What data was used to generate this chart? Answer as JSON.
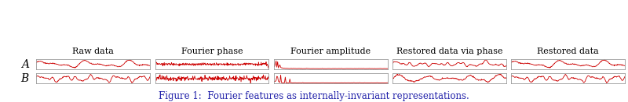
{
  "title": "Figure 1:  Fourier features as internally-invariant representations.",
  "col_titles": [
    "Raw data",
    "Fourier phase",
    "Fourier amplitude",
    "Restored data via phase",
    "Restored data"
  ],
  "row_labels": [
    "A",
    "B"
  ],
  "line_color": "#cc0000",
  "line_width": 0.6,
  "box_color": "#aaaaaa",
  "title_color": "#2222aa",
  "title_fontsize": 8.5,
  "col_title_fontsize": 8.0,
  "row_label_fontsize": 10,
  "n_points": 300
}
